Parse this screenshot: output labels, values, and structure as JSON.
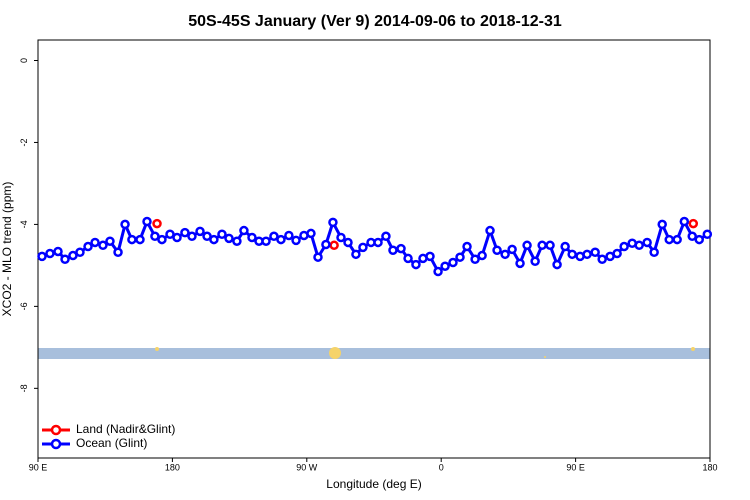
{
  "chart_data": {
    "type": "line",
    "title": "50S-45S January (Ver 9)   2014-09-06 to 2018-12-31",
    "xlabel": "Longitude (deg E)",
    "ylabel": "XCO2 - MLO trend (ppm)",
    "xlim": [
      90,
      540
    ],
    "ylim": [
      -9.7,
      0.5
    ],
    "xticks": [
      {
        "value": 90,
        "label": "90 E"
      },
      180,
      {
        "value": 270,
        "label": "90 W"
      },
      {
        "value": 360,
        "label": "0"
      },
      {
        "value": 450,
        "label": "90 E"
      },
      {
        "value": 540,
        "label": "180"
      }
    ],
    "yticks": [
      0,
      -2,
      -4,
      -6,
      -8
    ],
    "legend": "bottom-left",
    "series": [
      {
        "name": "Land (Nadir&Glint)",
        "color": "#ff0000",
        "line": false,
        "x": [
          169.7,
          288.3,
          528.8
        ],
        "values": [
          -3.98,
          -4.51,
          -3.98
        ]
      },
      {
        "name": "Ocean (Glint)",
        "color": "#0000ff",
        "line": true,
        "x": [
          92.7,
          98,
          103.4,
          108.1,
          113.4,
          118.1,
          123.5,
          128.2,
          133.5,
          138.2,
          143.6,
          148.3,
          152.9,
          158.3,
          163,
          168.3,
          173,
          178.4,
          183.1,
          188.4,
          193.1,
          198.5,
          203.2,
          207.8,
          213.2,
          217.9,
          223.2,
          227.9,
          233.3,
          238,
          242.7,
          248,
          252.7,
          258,
          262.8,
          268.1,
          272.8,
          277.5,
          282.8,
          287.5,
          292.9,
          297.6,
          302.9,
          307.6,
          313,
          317.7,
          323,
          327.7,
          333.1,
          337.8,
          343.1,
          347.8,
          352.5,
          357.9,
          362.6,
          367.9,
          372.6,
          377.3,
          382.7,
          387.4,
          392.7,
          397.4,
          402.8,
          407.5,
          412.8,
          417.5,
          422.9,
          427.6,
          432.9,
          437.6,
          443,
          447.7,
          453,
          457.7,
          463.1,
          467.8,
          473.1,
          477.8,
          482.5,
          487.9,
          492.6,
          497.9,
          502.6,
          508,
          512.7,
          518,
          522.8,
          528.1,
          532.8,
          538.2
        ],
        "values": [
          -4.78,
          -4.71,
          -4.66,
          -4.85,
          -4.76,
          -4.68,
          -4.54,
          -4.44,
          -4.51,
          -4.41,
          -4.68,
          -4.0,
          -4.37,
          -4.37,
          -3.93,
          -4.29,
          -4.37,
          -4.24,
          -4.32,
          -4.2,
          -4.29,
          -4.17,
          -4.29,
          -4.37,
          -4.24,
          -4.34,
          -4.41,
          -4.15,
          -4.32,
          -4.41,
          -4.41,
          -4.29,
          -4.37,
          -4.27,
          -4.39,
          -4.27,
          -4.22,
          -4.8,
          -4.49,
          -3.95,
          -4.32,
          -4.44,
          -4.73,
          -4.56,
          -4.44,
          -4.44,
          -4.29,
          -4.63,
          -4.59,
          -4.83,
          -4.98,
          -4.83,
          -4.78,
          -5.15,
          -5.02,
          -4.93,
          -4.8,
          -4.54,
          -4.85,
          -4.76,
          -4.15,
          -4.63,
          -4.73,
          -4.61,
          -4.95,
          -4.51,
          -4.9,
          -4.51,
          -4.51,
          -4.98,
          -4.54,
          -4.73,
          -4.78,
          -4.73,
          -4.68,
          -4.85,
          -4.78,
          -4.71,
          -4.54,
          -4.46,
          -4.51,
          -4.44,
          -4.68,
          -4.0,
          -4.37,
          -4.37,
          -3.93,
          -4.29,
          -4.37,
          -4.24
        ]
      }
    ]
  }
}
